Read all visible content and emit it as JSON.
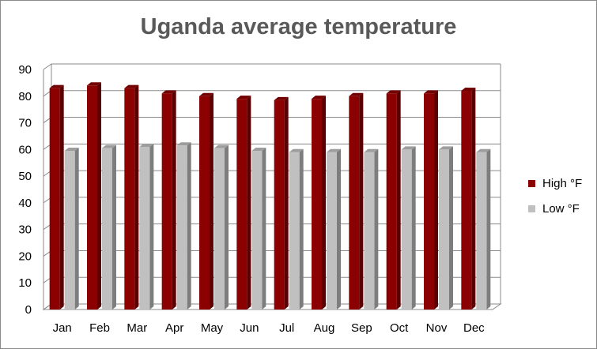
{
  "chart_data": {
    "type": "bar",
    "title": "Uganda average temperature",
    "categories": [
      "Jan",
      "Feb",
      "Mar",
      "Apr",
      "May",
      "Jun",
      "Jul",
      "Aug",
      "Sep",
      "Oct",
      "Nov",
      "Dec"
    ],
    "series": [
      {
        "name": "High °F",
        "color": "#8b0000",
        "values": [
          83,
          84,
          83,
          81,
          80,
          79,
          78.5,
          79,
          80,
          81,
          81,
          82
        ]
      },
      {
        "name": "Low °F",
        "color": "#c0c0c0",
        "values": [
          59.5,
          60.5,
          61,
          61.5,
          60.5,
          59.5,
          59,
          59,
          59,
          60,
          60,
          59
        ]
      }
    ],
    "yticks": [
      0,
      10,
      20,
      30,
      40,
      50,
      60,
      70,
      80,
      90
    ],
    "ylim": [
      0,
      90
    ],
    "grid": true,
    "legend_position": "right"
  }
}
